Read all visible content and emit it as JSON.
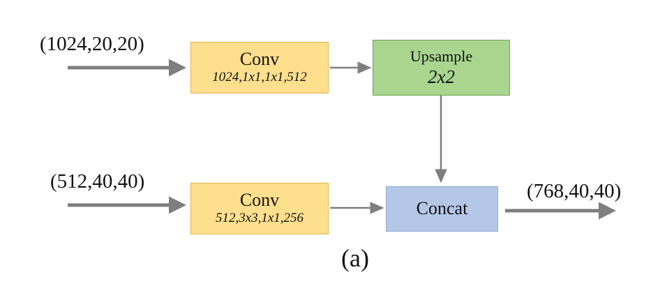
{
  "inputs": {
    "top": "(1024,20,20)",
    "bottom": "(512,40,40)"
  },
  "output": "(768,40,40)",
  "blocks": {
    "conv_top": {
      "title": "Conv",
      "params": "1024,1x1,1x1,512"
    },
    "upsample": {
      "title": "Upsample",
      "params": "2x2"
    },
    "conv_bottom": {
      "title": "Conv",
      "params": "512,3x3,1x1,256"
    },
    "concat": {
      "title": "Concat"
    }
  },
  "caption": "(a)",
  "colors": {
    "conv": "#fddf8e",
    "upsample": "#a9d58f",
    "concat": "#b4c7e7",
    "arrow": "#7f7f7f"
  }
}
